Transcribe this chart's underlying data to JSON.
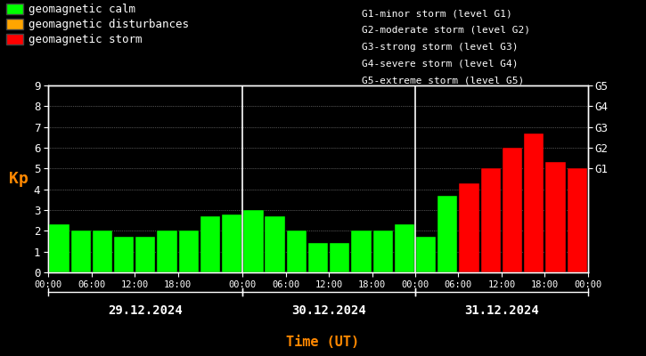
{
  "background_color": "#000000",
  "bar_values": [
    2.3,
    2.0,
    2.0,
    1.7,
    1.7,
    2.0,
    2.0,
    2.7,
    2.8,
    3.0,
    2.7,
    2.0,
    1.4,
    1.4,
    2.0,
    2.0,
    2.3,
    1.7,
    3.7,
    4.3,
    5.0,
    6.0,
    6.7,
    5.3,
    5.0
  ],
  "bar_colors": [
    "#00ff00",
    "#00ff00",
    "#00ff00",
    "#00ff00",
    "#00ff00",
    "#00ff00",
    "#00ff00",
    "#00ff00",
    "#00ff00",
    "#00ff00",
    "#00ff00",
    "#00ff00",
    "#00ff00",
    "#00ff00",
    "#00ff00",
    "#00ff00",
    "#00ff00",
    "#00ff00",
    "#00ff00",
    "#ff0000",
    "#ff0000",
    "#ff0000",
    "#ff0000",
    "#ff0000",
    "#ff0000"
  ],
  "ylim": [
    0,
    9
  ],
  "yticks": [
    0,
    1,
    2,
    3,
    4,
    5,
    6,
    7,
    8,
    9
  ],
  "grid_color": "#ffffff",
  "axis_color": "#ffffff",
  "tick_color": "#ffffff",
  "ylabel": "Kp",
  "ylabel_color": "#ff8800",
  "xlabel": "Time (UT)",
  "xlabel_color": "#ff8800",
  "day_labels": [
    "29.12.2024",
    "30.12.2024",
    "31.12.2024"
  ],
  "legend_items": [
    {
      "label": "geomagnetic calm",
      "color": "#00ff00"
    },
    {
      "label": "geomagnetic disturbances",
      "color": "#ffa500"
    },
    {
      "label": "geomagnetic storm",
      "color": "#ff0000"
    }
  ],
  "legend_text_color": "#ffffff",
  "storm_labels": [
    "G1-minor storm (level G1)",
    "G2-moderate storm (level G2)",
    "G3-strong storm (level G3)",
    "G4-severe storm (level G4)",
    "G5-extreme storm (level G5)"
  ],
  "right_tick_vals": [
    5,
    6,
    7,
    8,
    9
  ],
  "right_tick_labels": [
    "G1",
    "G2",
    "G3",
    "G4",
    "G5"
  ]
}
